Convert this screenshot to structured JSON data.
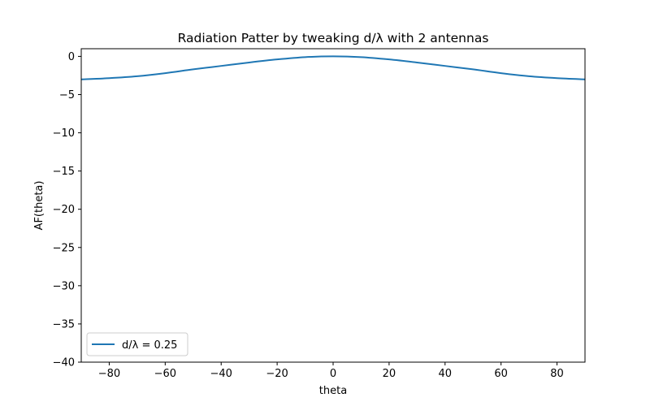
{
  "chart_data": {
    "type": "line",
    "title": "Radiation Patter by tweaking d/λ with 2 antennas",
    "xlabel": "theta",
    "ylabel": "AF(theta)",
    "xlim": [
      -90,
      90
    ],
    "ylim": [
      -40,
      1
    ],
    "xticks": [
      -80,
      -60,
      -40,
      -20,
      0,
      20,
      40,
      60,
      80
    ],
    "xtick_labels": [
      "−80",
      "−60",
      "−40",
      "−20",
      "0",
      "20",
      "40",
      "60",
      "80"
    ],
    "yticks": [
      0,
      -5,
      -10,
      -15,
      -20,
      -25,
      -30,
      -35,
      -40
    ],
    "ytick_labels": [
      "0",
      "−5",
      "−10",
      "−15",
      "−20",
      "−25",
      "−30",
      "−35",
      "−40"
    ],
    "grid": false,
    "legend_position": "lower-left",
    "series": [
      {
        "name": "d/λ = 0.25",
        "color": "#1f77b4",
        "x": [
          -90,
          -80,
          -70,
          -60,
          -50,
          -40,
          -30,
          -20,
          -10,
          0,
          10,
          20,
          30,
          40,
          50,
          60,
          70,
          80,
          90
        ],
        "y": [
          -3.01,
          -2.85,
          -2.6,
          -2.2,
          -1.7,
          -1.25,
          -0.8,
          -0.4,
          -0.1,
          0,
          -0.1,
          -0.4,
          -0.8,
          -1.25,
          -1.7,
          -2.2,
          -2.6,
          -2.85,
          -3.01
        ]
      }
    ]
  }
}
